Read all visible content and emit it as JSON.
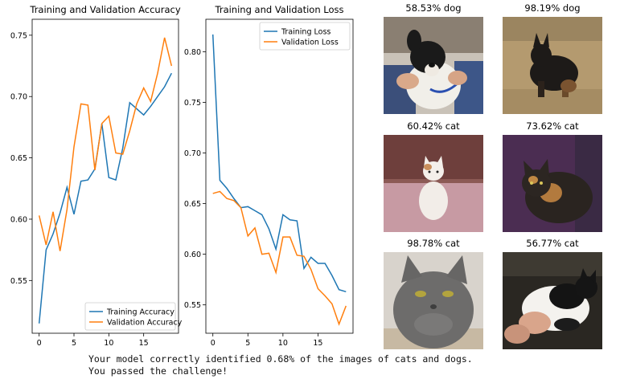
{
  "chart_data": [
    {
      "type": "line",
      "title": "Training and Validation Accuracy",
      "x": [
        0,
        1,
        2,
        3,
        4,
        5,
        6,
        7,
        8,
        9,
        10,
        11,
        12,
        13,
        14,
        15,
        16,
        17,
        18,
        19
      ],
      "xticks": [
        0,
        5,
        10,
        15
      ],
      "yticks": [
        0.55,
        0.6,
        0.65,
        0.7,
        0.75
      ],
      "xlim": [
        -1,
        20
      ],
      "ylim": [
        0.507,
        0.763
      ],
      "legend_position": "lower-right",
      "series": [
        {
          "name": "Training Accuracy",
          "color": "#1f77b4",
          "values": [
            0.515,
            0.575,
            0.588,
            0.605,
            0.626,
            0.604,
            0.631,
            0.632,
            0.641,
            0.678,
            0.634,
            0.632,
            0.658,
            0.695,
            0.69,
            0.685,
            0.692,
            0.7,
            0.708,
            0.719
          ]
        },
        {
          "name": "Validation Accuracy",
          "color": "#ff7f0e",
          "values": [
            0.603,
            0.579,
            0.606,
            0.574,
            0.608,
            0.659,
            0.694,
            0.693,
            0.64,
            0.678,
            0.684,
            0.654,
            0.653,
            0.672,
            0.694,
            0.707,
            0.696,
            0.719,
            0.748,
            0.725
          ]
        }
      ]
    },
    {
      "type": "line",
      "title": "Training and Validation Loss",
      "x": [
        0,
        1,
        2,
        3,
        4,
        5,
        6,
        7,
        8,
        9,
        10,
        11,
        12,
        13,
        14,
        15,
        16,
        17,
        18,
        19
      ],
      "xticks": [
        0,
        5,
        10,
        15
      ],
      "yticks": [
        0.55,
        0.6,
        0.65,
        0.7,
        0.75,
        0.8
      ],
      "xlim": [
        -1,
        20
      ],
      "ylim": [
        0.522,
        0.832
      ],
      "legend_position": "upper-right",
      "series": [
        {
          "name": "Training Loss",
          "color": "#1f77b4",
          "values": [
            0.817,
            0.673,
            0.665,
            0.655,
            0.646,
            0.647,
            0.643,
            0.639,
            0.625,
            0.605,
            0.639,
            0.634,
            0.633,
            0.586,
            0.597,
            0.591,
            0.591,
            0.579,
            0.565,
            0.563
          ]
        },
        {
          "name": "Validation Loss",
          "color": "#ff7f0e",
          "values": [
            0.66,
            0.662,
            0.655,
            0.653,
            0.646,
            0.618,
            0.626,
            0.6,
            0.601,
            0.582,
            0.617,
            0.617,
            0.599,
            0.598,
            0.585,
            0.566,
            0.559,
            0.551,
            0.531,
            0.549
          ]
        }
      ]
    }
  ],
  "predictions": [
    {
      "label": "58.53% dog",
      "icon": "dog-photo-icon"
    },
    {
      "label": "98.19% dog",
      "icon": "dog-photo-icon"
    },
    {
      "label": "60.42% cat",
      "icon": "cat-photo-icon"
    },
    {
      "label": "73.62% cat",
      "icon": "cat-photo-icon"
    },
    {
      "label": "98.78% cat",
      "icon": "cat-photo-icon"
    },
    {
      "label": "56.77% cat",
      "icon": "cat-photo-icon"
    }
  ],
  "console": {
    "line1": "Your model correctly identified 0.68% of the images of cats and dogs.",
    "line2": "You passed the challenge!"
  }
}
